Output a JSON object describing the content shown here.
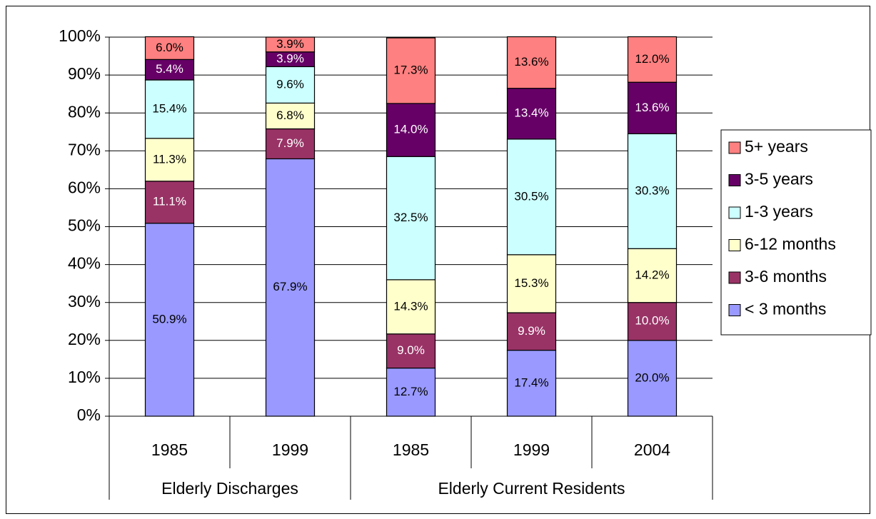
{
  "chart_data": {
    "type": "stacked_bar",
    "groups": [
      {
        "name": "Elderly Discharges",
        "categories": [
          "1985",
          "1999"
        ]
      },
      {
        "name": "Elderly Current Residents",
        "categories": [
          "1985",
          "1999",
          "2004"
        ]
      }
    ],
    "series": [
      {
        "name": "< 3 months",
        "color": "#9999ff",
        "values": [
          50.9,
          67.9,
          12.7,
          17.4,
          20.0
        ],
        "value_labels": [
          "50.9%",
          "67.9%",
          "12.7%",
          "17.4%",
          "20.0%"
        ]
      },
      {
        "name": "3-6 months",
        "color": "#993366",
        "values": [
          11.1,
          7.9,
          9.0,
          9.9,
          10.0
        ],
        "value_labels": [
          "11.1%",
          "7.9%",
          "9.0%",
          "9.9%",
          "10.0%"
        ]
      },
      {
        "name": "6-12 months",
        "color": "#ffffcc",
        "values": [
          11.3,
          6.8,
          14.3,
          15.3,
          14.2
        ],
        "value_labels": [
          "11.3%",
          "6.8%",
          "14.3%",
          "15.3%",
          "14.2%"
        ]
      },
      {
        "name": "1-3 years",
        "color": "#ccffff",
        "values": [
          15.4,
          9.6,
          32.5,
          30.5,
          30.3
        ],
        "value_labels": [
          "15.4%",
          "9.6%",
          "32.5%",
          "30.5%",
          "30.3%"
        ]
      },
      {
        "name": "3-5 years",
        "color": "#660066",
        "values": [
          5.4,
          3.9,
          14.0,
          13.4,
          13.6
        ],
        "value_labels": [
          "5.4%",
          "3.9%",
          "14.0%",
          "13.4%",
          "13.6%"
        ]
      },
      {
        "name": "5+ years",
        "color": "#ff8080",
        "values": [
          6.0,
          3.9,
          17.3,
          13.6,
          12.0
        ],
        "value_labels": [
          "6.0%",
          "3.9%",
          "17.3%",
          "13.6%",
          "12.0%"
        ]
      }
    ],
    "ylim": [
      0,
      100
    ],
    "yticks": [
      {
        "value": 0,
        "label": "0%"
      },
      {
        "value": 10,
        "label": "10%"
      },
      {
        "value": 20,
        "label": "20%"
      },
      {
        "value": 30,
        "label": "30%"
      },
      {
        "value": 40,
        "label": "40%"
      },
      {
        "value": 50,
        "label": "50%"
      },
      {
        "value": 60,
        "label": "60%"
      },
      {
        "value": 70,
        "label": "70%"
      },
      {
        "value": 80,
        "label": "80%"
      },
      {
        "value": 90,
        "label": "90%"
      },
      {
        "value": 100,
        "label": "100%"
      }
    ],
    "grid": true,
    "legend": "right"
  }
}
